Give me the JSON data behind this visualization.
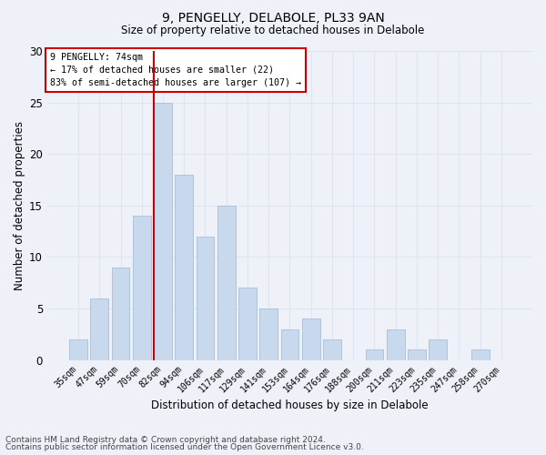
{
  "title1": "9, PENGELLY, DELABOLE, PL33 9AN",
  "title2": "Size of property relative to detached houses in Delabole",
  "xlabel": "Distribution of detached houses by size in Delabole",
  "ylabel": "Number of detached properties",
  "categories": [
    "35sqm",
    "47sqm",
    "59sqm",
    "70sqm",
    "82sqm",
    "94sqm",
    "106sqm",
    "117sqm",
    "129sqm",
    "141sqm",
    "153sqm",
    "164sqm",
    "176sqm",
    "188sqm",
    "200sqm",
    "211sqm",
    "223sqm",
    "235sqm",
    "247sqm",
    "258sqm",
    "270sqm"
  ],
  "values": [
    2,
    6,
    9,
    14,
    25,
    18,
    12,
    15,
    7,
    5,
    3,
    4,
    2,
    0,
    1,
    3,
    1,
    2,
    0,
    1,
    0
  ],
  "bar_color": "#c9d9ed",
  "bar_edge_color": "#a8bfd8",
  "annotation_line1": "9 PENGELLY: 74sqm",
  "annotation_line2": "← 17% of detached houses are smaller (22)",
  "annotation_line3": "83% of semi-detached houses are larger (107) →",
  "annotation_box_color": "#ffffff",
  "annotation_box_edge_color": "#cc0000",
  "vline_color": "#cc0000",
  "vline_x": 3.575,
  "ylim": [
    0,
    30
  ],
  "yticks": [
    0,
    5,
    10,
    15,
    20,
    25,
    30
  ],
  "footnote1": "Contains HM Land Registry data © Crown copyright and database right 2024.",
  "footnote2": "Contains public sector information licensed under the Open Government Licence v3.0.",
  "grid_color": "#dde6f0",
  "background_color": "#eef2f8"
}
